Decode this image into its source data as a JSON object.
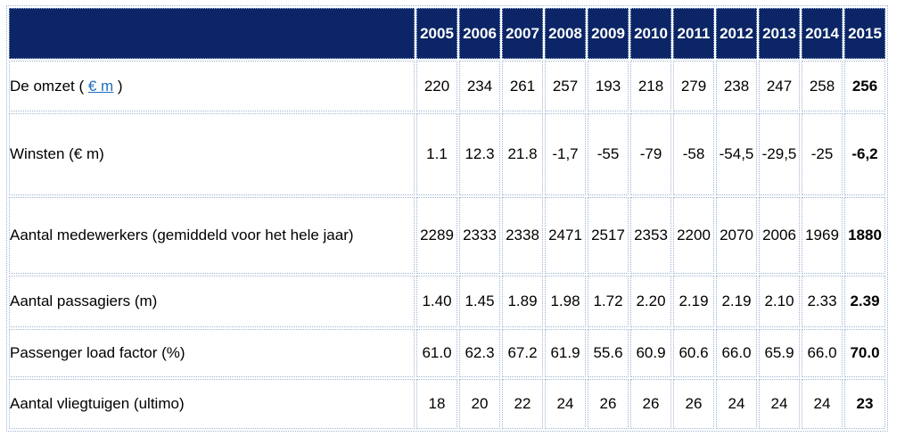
{
  "table": {
    "years": [
      "2005",
      "2006",
      "2007",
      "2008",
      "2009",
      "2010",
      "2011",
      "2012",
      "2013",
      "2014",
      "2015"
    ],
    "rows": [
      {
        "label_pre": "De omzet ( ",
        "label_link": "€ m",
        "label_post": " )",
        "values": [
          "220",
          "234",
          "261",
          "257",
          "193",
          "218",
          "279",
          "238",
          "247",
          "258",
          "256"
        ]
      },
      {
        "label": "Winsten (€ m)",
        "values": [
          "1.1",
          "12.3",
          "21.8",
          "-1,7",
          "-55",
          "-79",
          "-58",
          "-54,5",
          "-29,5",
          "-25",
          "-6,2"
        ]
      },
      {
        "label": "Aantal medewerkers (gemiddeld voor het hele jaar)",
        "values": [
          "2289",
          "2333",
          "2338",
          "2471",
          "2517",
          "2353",
          "2200",
          "2070",
          "2006",
          "1969",
          "1880"
        ]
      },
      {
        "label": "Aantal passagiers (m)",
        "values": [
          "1.40",
          "1.45",
          "1.89",
          "1.98",
          "1.72",
          "2.20",
          "2.19",
          "2.19",
          "2.10",
          "2.33",
          "2.39"
        ]
      },
      {
        "label": "Passenger load factor (%)",
        "values": [
          "61.0",
          "62.3",
          "67.2",
          "61.9",
          "55.6",
          "60.9",
          "60.6",
          "66.0",
          "65.9",
          "66.0",
          "70.0"
        ]
      },
      {
        "label": "Aantal vliegtuigen (ultimo)",
        "values": [
          "18",
          "20",
          "22",
          "24",
          "26",
          "26",
          "26",
          "24",
          "24",
          "24",
          "23"
        ]
      }
    ]
  }
}
